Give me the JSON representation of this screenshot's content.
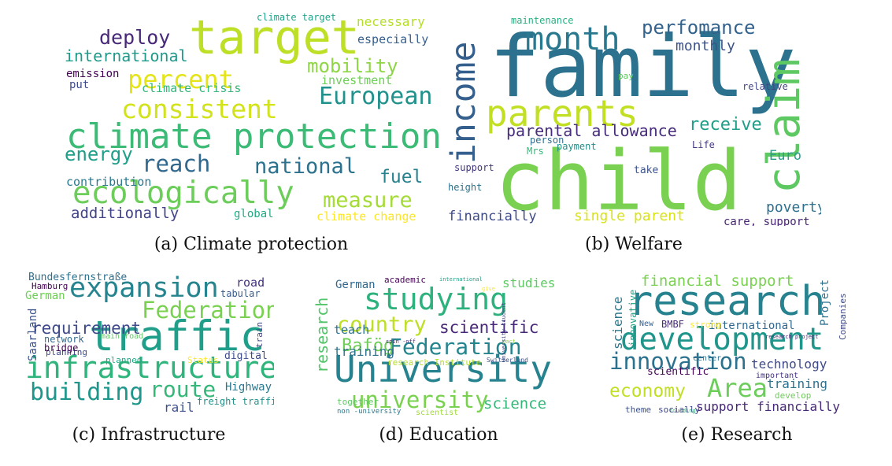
{
  "figure": {
    "panels": [
      {
        "caption": "(a) Climate protection",
        "words": [
          {
            "text": "target",
            "color": "#bddf26"
          },
          {
            "text": "climate protection",
            "color": "#3bbb75"
          },
          {
            "text": "ecologically",
            "color": "#6ccd5a"
          },
          {
            "text": "consistent",
            "color": "#d2e21b"
          },
          {
            "text": "percent",
            "color": "#e5e419"
          },
          {
            "text": "European",
            "color": "#21918c"
          },
          {
            "text": "reach",
            "color": "#31688e"
          },
          {
            "text": "national",
            "color": "#2c728e"
          },
          {
            "text": "measure",
            "color": "#a5db36"
          },
          {
            "text": "mobility",
            "color": "#8ed645"
          },
          {
            "text": "energy",
            "color": "#1f9e89"
          },
          {
            "text": "deploy",
            "color": "#482878"
          },
          {
            "text": "international",
            "color": "#1f9a8a"
          },
          {
            "text": "fuel",
            "color": "#26828e"
          },
          {
            "text": "additionally",
            "color": "#414487"
          },
          {
            "text": "contribution",
            "color": "#2a788e"
          },
          {
            "text": "emission",
            "color": "#440154"
          },
          {
            "text": "put",
            "color": "#3e4a89"
          },
          {
            "text": "climate crisis",
            "color": "#35b779"
          },
          {
            "text": "investment",
            "color": "#6ece58"
          },
          {
            "text": "necessary",
            "color": "#b5de2b"
          },
          {
            "text": "especially",
            "color": "#355f8d"
          },
          {
            "text": "climate target",
            "color": "#1fa187"
          },
          {
            "text": "global",
            "color": "#22a884"
          },
          {
            "text": "climate change",
            "color": "#fde725"
          }
        ]
      },
      {
        "caption": "(b) Welfare",
        "words": [
          {
            "text": "family",
            "color": "#2c728e"
          },
          {
            "text": "child",
            "color": "#7ad151"
          },
          {
            "text": "claim",
            "color": "#5ec962"
          },
          {
            "text": "income",
            "color": "#355f8d"
          },
          {
            "text": "parents",
            "color": "#c2df23"
          },
          {
            "text": "month",
            "color": "#2a788e"
          },
          {
            "text": "perfomance",
            "color": "#33638d"
          },
          {
            "text": "monthly",
            "color": "#3b528b"
          },
          {
            "text": "parental allowance",
            "color": "#472d7b"
          },
          {
            "text": "receive",
            "color": "#1f9e89"
          },
          {
            "text": "poverty",
            "color": "#2d708e"
          },
          {
            "text": "Euro",
            "color": "#2a9d8f"
          },
          {
            "text": "financially",
            "color": "#3e4989"
          },
          {
            "text": "single parent",
            "color": "#d8e219"
          },
          {
            "text": "care, support",
            "color": "#482475"
          },
          {
            "text": "maintenance",
            "color": "#29af7f"
          },
          {
            "text": "pay",
            "color": "#5ec962"
          },
          {
            "text": "relative",
            "color": "#404688"
          },
          {
            "text": "person",
            "color": "#2f6c8e"
          },
          {
            "text": "Mrs",
            "color": "#35b779"
          },
          {
            "text": "payment",
            "color": "#218f8d"
          },
          {
            "text": "Life",
            "color": "#443a83"
          },
          {
            "text": "support",
            "color": "#453781"
          },
          {
            "text": "take",
            "color": "#3b528b"
          },
          {
            "text": "height",
            "color": "#2c728e"
          }
        ]
      },
      {
        "caption": "(c) Infrastructure",
        "words": [
          {
            "text": "traffic",
            "color": "#1f9e89"
          },
          {
            "text": "infrastructure",
            "color": "#2fb47c"
          },
          {
            "text": "expansion",
            "color": "#25848e"
          },
          {
            "text": "Federation",
            "color": "#7ad151"
          },
          {
            "text": "building",
            "color": "#1f968b"
          },
          {
            "text": "route",
            "color": "#35b779"
          },
          {
            "text": "requirement",
            "color": "#3e4a89"
          },
          {
            "text": "Bundesfernstraße",
            "color": "#2d708e"
          },
          {
            "text": "Hamburg",
            "color": "#440154"
          },
          {
            "text": "German",
            "color": "#6ece58"
          },
          {
            "text": "Saarland",
            "color": "#3b528b"
          },
          {
            "text": "network",
            "color": "#31688e"
          },
          {
            "text": "planning",
            "color": "#3e4989"
          },
          {
            "text": "bridge",
            "color": "#440154"
          },
          {
            "text": "main road",
            "color": "#5ec962"
          },
          {
            "text": "road",
            "color": "#46337f"
          },
          {
            "text": "tabular",
            "color": "#365c8d"
          },
          {
            "text": "train",
            "color": "#414487"
          },
          {
            "text": "digital",
            "color": "#3e4a89"
          },
          {
            "text": "planned",
            "color": "#22a884"
          },
          {
            "text": "Status",
            "color": "#fde725"
          },
          {
            "text": "Highway",
            "color": "#2a788e"
          },
          {
            "text": "rail",
            "color": "#3b528b"
          },
          {
            "text": "freight traffic",
            "color": "#21918c"
          }
        ]
      },
      {
        "caption": "(d) Education",
        "words": [
          {
            "text": "University",
            "color": "#26828e"
          },
          {
            "text": "studying",
            "color": "#2db27d"
          },
          {
            "text": "university",
            "color": "#7ad151"
          },
          {
            "text": "Federation",
            "color": "#25858e"
          },
          {
            "text": "country",
            "color": "#bddf26"
          },
          {
            "text": "scientific",
            "color": "#482878"
          },
          {
            "text": "research",
            "color": "#52c569"
          },
          {
            "text": "studies",
            "color": "#5ec962"
          },
          {
            "text": "Bafög",
            "color": "#6ece58"
          },
          {
            "text": "science",
            "color": "#35b779"
          },
          {
            "text": "training",
            "color": "#2c728e"
          },
          {
            "text": "teach",
            "color": "#2c728e"
          },
          {
            "text": "German",
            "color": "#31688e"
          },
          {
            "text": "academic",
            "color": "#440154"
          },
          {
            "text": "international",
            "color": "#1fa187"
          },
          {
            "text": "give",
            "color": "#fde725"
          },
          {
            "text": "spin -off",
            "color": "#482878"
          },
          {
            "text": "pact",
            "color": "#8ed645"
          },
          {
            "text": "University student",
            "color": "#3e4989"
          },
          {
            "text": "research Institute",
            "color": "#b5de2b"
          },
          {
            "text": "Switzerland",
            "color": "#3b528b"
          },
          {
            "text": "together",
            "color": "#5ec962"
          },
          {
            "text": "non -university",
            "color": "#2a788e"
          },
          {
            "text": "scientist",
            "color": "#9fda3a"
          }
        ]
      },
      {
        "caption": "(e) Research",
        "words": [
          {
            "text": "research",
            "color": "#26828e"
          },
          {
            "text": "development",
            "color": "#1f968b"
          },
          {
            "text": "innovation",
            "color": "#2c728e"
          },
          {
            "text": "Area",
            "color": "#6ccd5a"
          },
          {
            "text": "economy",
            "color": "#c2df23"
          },
          {
            "text": "financial support",
            "color": "#7ad151"
          },
          {
            "text": "technology",
            "color": "#3e4a89"
          },
          {
            "text": "international",
            "color": "#31688e"
          },
          {
            "text": "training",
            "color": "#2c728e"
          },
          {
            "text": "support financially",
            "color": "#482878"
          },
          {
            "text": "science",
            "color": "#2a788e"
          },
          {
            "text": "innovative",
            "color": "#1fa187"
          },
          {
            "text": "Project",
            "color": "#2d708e"
          },
          {
            "text": "Companies",
            "color": "#3e4989"
          },
          {
            "text": "BMBF",
            "color": "#472d7b"
          },
          {
            "text": "strong",
            "color": "#fde725"
          },
          {
            "text": "New",
            "color": "#355f8d"
          },
          {
            "text": "center",
            "color": "#2c728e"
          },
          {
            "text": "scientific",
            "color": "#440154"
          },
          {
            "text": "important",
            "color": "#46327e"
          },
          {
            "text": "research project",
            "color": "#482878"
          },
          {
            "text": "develop",
            "color": "#6ece58"
          },
          {
            "text": "founding",
            "color": "#35b779"
          },
          {
            "text": "theme",
            "color": "#3b528b"
          },
          {
            "text": "socially",
            "color": "#404688"
          }
        ]
      }
    ]
  }
}
